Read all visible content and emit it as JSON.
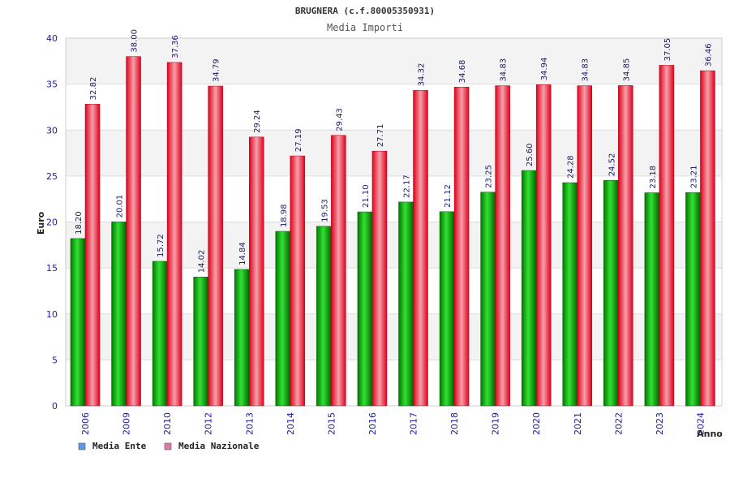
{
  "chart_data": {
    "type": "bar",
    "title": "BRUGNERA (c.f.80005350931)",
    "subtitle": "Media Importi",
    "xlabel": "Anno",
    "ylabel": "Euro",
    "ylim": [
      0,
      40
    ],
    "yticks": [
      0,
      5,
      10,
      15,
      20,
      25,
      30,
      35,
      40
    ],
    "categories": [
      "2006",
      "2009",
      "2010",
      "2012",
      "2013",
      "2014",
      "2015",
      "2016",
      "2017",
      "2018",
      "2019",
      "2020",
      "2021",
      "2022",
      "2023",
      "2024"
    ],
    "series": [
      {
        "name": "Media Ente",
        "color": "#00aa00",
        "values": [
          18.2,
          20.01,
          15.72,
          14.02,
          14.84,
          18.98,
          19.53,
          21.1,
          22.17,
          21.12,
          23.25,
          25.6,
          24.28,
          24.52,
          23.18,
          23.21
        ],
        "labels": [
          "18.20",
          "20.01",
          "15.72",
          "14.02",
          "14.84",
          "18.98",
          "19.53",
          "21.10",
          "22.17",
          "21.12",
          "23.25",
          "25.60",
          "24.28",
          "24.52",
          "23.18",
          "23.21"
        ]
      },
      {
        "name": "Media Nazionale",
        "color": "#e8102a",
        "values": [
          32.82,
          38.0,
          37.36,
          34.79,
          29.24,
          27.19,
          29.43,
          27.71,
          34.32,
          34.68,
          34.83,
          34.94,
          34.83,
          34.85,
          37.05,
          36.46
        ],
        "labels": [
          "32.82",
          "38.00",
          "37.36",
          "34.79",
          "29.24",
          "27.19",
          "29.43",
          "27.71",
          "34.32",
          "34.68",
          "34.83",
          "34.94",
          "34.83",
          "34.85",
          "37.05",
          "36.46"
        ]
      }
    ],
    "legend": [
      {
        "label": "Media Ente",
        "swatch": "#5b9be6"
      },
      {
        "label": "Media Nazionale",
        "swatch": "#e07aa8"
      }
    ],
    "grid": true,
    "legend_position": "bottom-left"
  }
}
